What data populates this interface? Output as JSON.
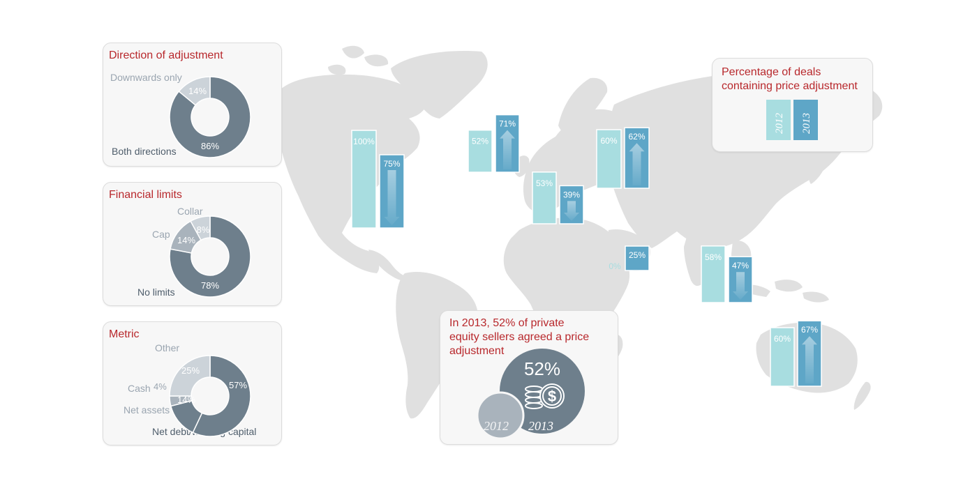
{
  "colors": {
    "bar_2012": "#a8dde0",
    "bar_2013": "#5ea6c7",
    "donut_dark": "#6e7f8c",
    "donut_mid": "#a9b3bc",
    "donut_light": "#ccd3d9",
    "map": "#e0e0e0",
    "title_red": "#b8282c"
  },
  "legend": {
    "title_line1": "Percentage of deals",
    "title_line2": "containing price adjustment",
    "year_2012": "2012",
    "year_2013": "2013"
  },
  "callout": {
    "line1": "In 2013, 52% of private",
    "line2": "equity sellers agreed a price",
    "line3": "adjustment",
    "big_value": "52%",
    "year_2012": "2012",
    "year_2013": "2013",
    "icon": "dollar-coins-icon"
  },
  "chart_data": [
    {
      "type": "pie",
      "title": "Direction of adjustment",
      "slices": [
        {
          "label": "Both directions",
          "value": 86,
          "display": "86%"
        },
        {
          "label": "Downwards only",
          "value": 14,
          "display": "14%"
        }
      ]
    },
    {
      "type": "pie",
      "title": "Financial limits",
      "slices": [
        {
          "label": "No limits",
          "value": 78,
          "display": "78%"
        },
        {
          "label": "Cap",
          "value": 14,
          "display": "14%"
        },
        {
          "label": "Collar",
          "value": 8,
          "display": "8%"
        }
      ]
    },
    {
      "type": "pie",
      "title": "Metric",
      "slices": [
        {
          "label": "Net debt/working capital",
          "value": 57,
          "display": "57%"
        },
        {
          "label": "Net assets",
          "value": 14,
          "display": "14%"
        },
        {
          "label": "Cash",
          "value": 4,
          "display": "4%"
        },
        {
          "label": "Other",
          "value": 25,
          "display": "25%"
        }
      ]
    },
    {
      "type": "bar",
      "title": "Percentage of deals containing price adjustment",
      "series_names": [
        "2012",
        "2013"
      ],
      "regions": [
        {
          "v2012": 100,
          "v2013": 75,
          "l2012": "100%",
          "l2013": "75%",
          "trend": "down"
        },
        {
          "v2012": 52,
          "v2013": 71,
          "l2012": "52%",
          "l2013": "71%",
          "trend": "up"
        },
        {
          "v2012": 53,
          "v2013": 39,
          "l2012": "53%",
          "l2013": "39%",
          "trend": "down"
        },
        {
          "v2012": 60,
          "v2013": 62,
          "l2012": "60%",
          "l2013": "62%",
          "trend": "up"
        },
        {
          "v2012": 0,
          "v2013": 25,
          "l2012": "0%",
          "l2013": "25%",
          "trend": "up"
        },
        {
          "v2012": 58,
          "v2013": 47,
          "l2012": "58%",
          "l2013": "47%",
          "trend": "down"
        },
        {
          "v2012": 60,
          "v2013": 67,
          "l2012": "60%",
          "l2013": "67%",
          "trend": "up"
        }
      ]
    }
  ]
}
